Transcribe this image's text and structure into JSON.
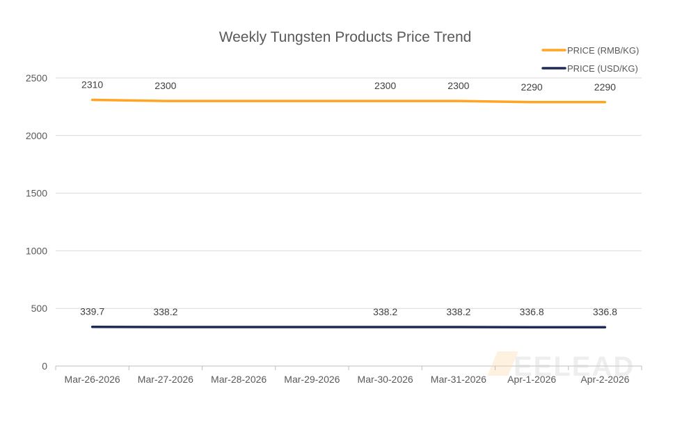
{
  "chart_data": {
    "type": "line",
    "title": "Weekly Tungsten Products Price Trend",
    "categories": [
      "Mar-26-2026",
      "Mar-27-2026",
      "Mar-28-2026",
      "Mar-29-2026",
      "Mar-30-2026",
      "Mar-31-2026",
      "Apr-1-2026",
      "Apr-2-2026"
    ],
    "ylim": [
      0,
      2500
    ],
    "yticks": [
      0,
      500,
      1000,
      1500,
      2000,
      2500
    ],
    "grid": true,
    "legend_position": "top-right",
    "series": [
      {
        "name": "PRICE (RMB/KG)",
        "color": "#FFA523",
        "values": [
          2310,
          2300,
          2300,
          2300,
          2300,
          2300,
          2290,
          2290
        ],
        "data_labels": [
          "2310",
          "2300",
          null,
          null,
          "2300",
          "2300",
          "2290",
          "2290"
        ]
      },
      {
        "name": "PRICE (USD/KG)",
        "color": "#1F2A55",
        "values": [
          339.7,
          338.2,
          338.2,
          338.2,
          338.2,
          338.2,
          336.8,
          336.8
        ],
        "data_labels": [
          "339.7",
          "338.2",
          null,
          null,
          "338.2",
          "338.2",
          "336.8",
          "336.8"
        ]
      }
    ],
    "watermark": "MEELEAD"
  }
}
